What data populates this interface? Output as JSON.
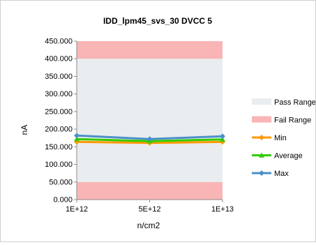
{
  "chart_data": {
    "type": "line",
    "title": "IDD_lpm45_svs_30 DVCC 5",
    "xlabel": "n/cm2",
    "ylabel": "nA",
    "categories": [
      "1E+12",
      "5E+12",
      "1E+13"
    ],
    "ylim": [
      0,
      450
    ],
    "yticks": [
      "0.000",
      "50.000",
      "100.000",
      "150.000",
      "200.000",
      "250.000",
      "300.000",
      "350.000",
      "400.000",
      "450.000"
    ],
    "grid": false,
    "legend_position": "right",
    "bands": [
      {
        "name": "Pass Range",
        "from": 50,
        "to": 400,
        "color": "#e9edef"
      },
      {
        "name": "Fail Range",
        "from": 0,
        "to": 50,
        "color": "#f9b5b5"
      },
      {
        "name": "Fail Range",
        "from": 400,
        "to": 450,
        "color": "#f9b5b5"
      }
    ],
    "series": [
      {
        "name": "Min",
        "values": [
          164,
          161,
          164
        ],
        "color": "#ff9900",
        "marker": "diamond"
      },
      {
        "name": "Average",
        "values": [
          172,
          166,
          171
        ],
        "color": "#33cc00",
        "marker": "triangle"
      },
      {
        "name": "Max",
        "values": [
          182,
          172,
          180
        ],
        "color": "#4a90c8",
        "marker": "diamond"
      }
    ]
  }
}
